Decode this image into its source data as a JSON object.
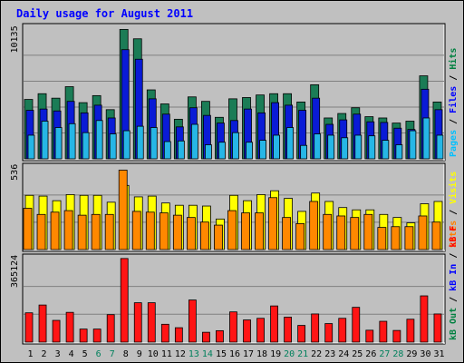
{
  "chart_data": {
    "type": "bar",
    "title": "Daily usage for August 2011",
    "x": [
      "1",
      "2",
      "3",
      "4",
      "5",
      "6",
      "7",
      "8",
      "9",
      "10",
      "11",
      "12",
      "13",
      "14",
      "15",
      "16",
      "17",
      "18",
      "19",
      "20",
      "21",
      "22",
      "23",
      "24",
      "25",
      "26",
      "27",
      "28",
      "29",
      "30",
      "31"
    ],
    "weekend_days": [
      "6",
      "7",
      "13",
      "14",
      "20",
      "21",
      "27",
      "28"
    ],
    "panels": [
      {
        "id": "hits-files-pages",
        "ymax_label": "10135",
        "ymax": 10135,
        "legend": [
          {
            "label": "Hits",
            "color": "#008040"
          },
          {
            "label": "Files",
            "color": "#0000ff"
          },
          {
            "label": "Pages",
            "color": "#00c0ff"
          }
        ],
        "series": [
          {
            "name": "Hits",
            "color": "#1b7c56",
            "values": [
              4650,
              5100,
              4750,
              5650,
              4400,
              4950,
              3850,
              10135,
              9400,
              5400,
              4300,
              3100,
              4850,
              4500,
              3250,
              4700,
              4800,
              5000,
              5100,
              5100,
              4450,
              5800,
              3200,
              3550,
              4000,
              3300,
              3200,
              2800,
              2950,
              6500,
              4450
            ]
          },
          {
            "name": "Files",
            "color": "#0a1bd6",
            "values": [
              3800,
              3900,
              3750,
              4500,
              3600,
              4200,
              3200,
              8550,
              7800,
              4700,
              3500,
              2500,
              4000,
              3400,
              2800,
              3000,
              3900,
              3600,
              4400,
              4200,
              3800,
              4750,
              2700,
              3050,
              3500,
              2900,
              2850,
              2400,
              2300,
              5450,
              3850
            ]
          },
          {
            "name": "Pages",
            "color": "#26b6e6",
            "values": [
              1850,
              2950,
              2450,
              2750,
              2050,
              3000,
              1950,
              2200,
              2550,
              2450,
              1350,
              1400,
              2700,
              1100,
              1300,
              2050,
              1300,
              1450,
              1850,
              2450,
              1050,
              1950,
              1850,
              1650,
              1850,
              1800,
              1450,
              1100,
              2200,
              3200,
              1850
            ]
          }
        ]
      },
      {
        "id": "visits-sites",
        "ymax_label": "536",
        "ymax": 536,
        "legend": [
          {
            "label": "Visits",
            "color": "#ffff00"
          },
          {
            "label": "Sites",
            "color": "#ff8000"
          }
        ],
        "series": [
          {
            "name": "Visits",
            "color": "#ffff00",
            "values": [
              355,
              350,
              320,
              360,
              355,
              355,
              310,
              420,
              345,
              350,
              305,
              290,
              290,
              285,
              200,
              355,
              320,
              360,
              385,
              335,
              250,
              370,
              315,
              275,
              260,
              260,
              230,
              210,
              175,
              300,
              315
            ]
          },
          {
            "name": "Sites",
            "color": "#ff8800",
            "values": [
              270,
              230,
              245,
              255,
              225,
              230,
              230,
              520,
              250,
              245,
              240,
              225,
              210,
              180,
              160,
              255,
              240,
              240,
              340,
              210,
              170,
              315,
              230,
              220,
              210,
              230,
              145,
              150,
              150,
              220,
              180
            ]
          }
        ]
      },
      {
        "id": "kbytes",
        "ymax_label": "365124",
        "ymax": 365124,
        "legend": [
          {
            "label": "kB F",
            "color": "#ff0000"
          },
          {
            "label": "kB In",
            "color": "#0000ff"
          },
          {
            "label": "kB Out",
            "color": "#008040"
          }
        ],
        "series": [
          {
            "name": "kB F",
            "color": "#ff1414",
            "values": [
              128000,
              162000,
              95000,
              130000,
              57000,
              57000,
              120000,
              365124,
              172000,
              172000,
              78000,
              63000,
              184000,
              43000,
              50000,
              132000,
              97000,
              104000,
              158000,
              109000,
              73000,
              123000,
              81000,
              104000,
              152000,
              52000,
              91000,
              51000,
              100000,
              202000,
              123000
            ]
          }
        ]
      }
    ],
    "colors": {
      "frame_bg": "#c0c0c0",
      "panel_bg": "#c0c0c0",
      "gridline": "#808080",
      "title": "#0000ff",
      "day_label": "#000000",
      "weekend_label": "#00805c"
    }
  }
}
